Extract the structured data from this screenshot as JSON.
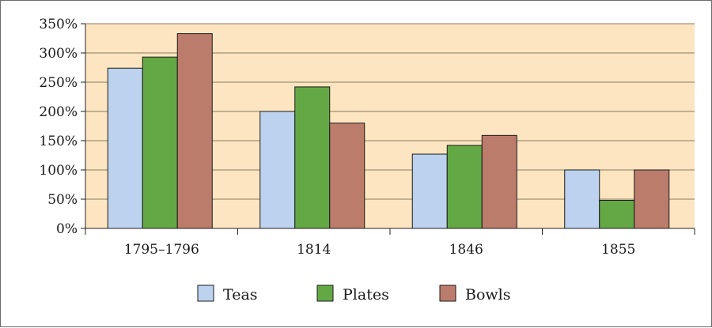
{
  "chart_data": {
    "type": "bar",
    "title": "",
    "xlabel": "",
    "ylabel": "",
    "categories": [
      "1795–1796",
      "1814",
      "1846",
      "1855"
    ],
    "series": [
      {
        "name": "Teas",
        "color": "#bcd2ee",
        "values": [
          274,
          200,
          127,
          100
        ]
      },
      {
        "name": "Plates",
        "color": "#64a846",
        "values": [
          293,
          242,
          142,
          48
        ]
      },
      {
        "name": "Bowls",
        "color": "#bc7c6c",
        "values": [
          333,
          180,
          159,
          100
        ]
      }
    ],
    "ylim": [
      0,
      350
    ],
    "yticks": [
      0,
      50,
      100,
      150,
      200,
      250,
      300,
      350
    ],
    "ytick_labels": [
      "0%",
      "50%",
      "100%",
      "150%",
      "200%",
      "250%",
      "300%",
      "350%"
    ],
    "grid": true,
    "legend_position": "bottom",
    "plot_background": "#fce5c0",
    "gridline_color": "#8a7a60"
  }
}
